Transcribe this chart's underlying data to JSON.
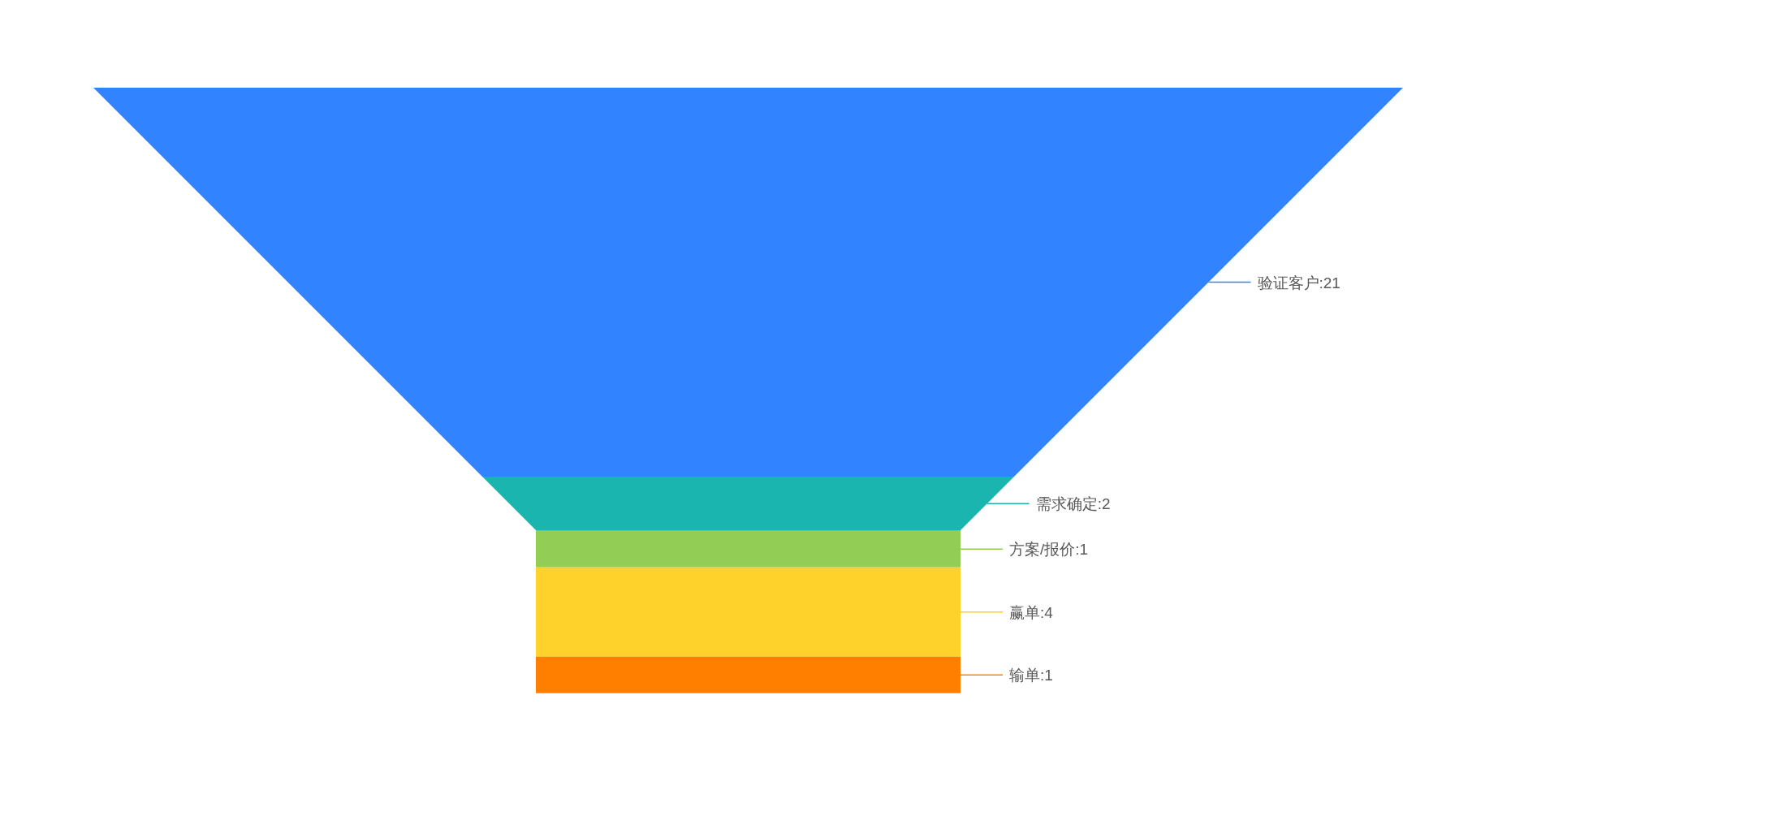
{
  "chart_data": {
    "type": "other",
    "categories": [
      "验证客户",
      "需求确定",
      "方案/报价",
      "赢单",
      "输单"
    ],
    "values": [
      21,
      2,
      1,
      4,
      1
    ],
    "value_labels": [
      ":21",
      ":2",
      ":1",
      ":4",
      ":1"
    ],
    "colors": [
      "#3283ff",
      "#19b5ae",
      "#92ce55",
      "#fed22a",
      "#ff8000"
    ]
  }
}
